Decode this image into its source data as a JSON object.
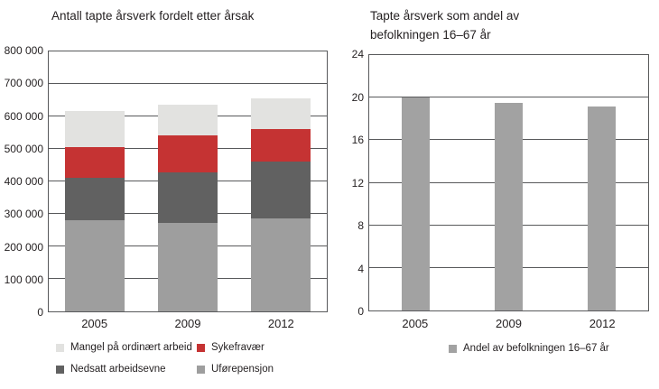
{
  "page": {
    "background": "#ffffff",
    "text_color": "#231f20",
    "grid_color": "#58595b"
  },
  "left_chart": {
    "title": "Antall tapte årsverk fordelt etter årsak",
    "y_ticks": [
      "800 000",
      "700 000",
      "600 000",
      "500 000",
      "400 000",
      "300 000",
      "200 000",
      "100 000",
      "0"
    ],
    "x_ticks": [
      "2005",
      "2009",
      "2012"
    ],
    "legend": [
      {
        "label": "Mangel på ordinært arbeid",
        "color": "#e2e2e0"
      },
      {
        "label": "Sykefravær",
        "color": "#c53333"
      },
      {
        "label": "Nedsatt arbeidsevne",
        "color": "#616161"
      },
      {
        "label": "Uførepensjon",
        "color": "#9e9e9e"
      }
    ]
  },
  "right_chart": {
    "title_line1": "Tapte årsverk som andel av",
    "title_line2": "befolkningen 16–67 år",
    "y_ticks": [
      "24",
      "20",
      "16",
      "12",
      "8",
      "4",
      "0"
    ],
    "x_ticks": [
      "2005",
      "2009",
      "2012"
    ],
    "legend": [
      {
        "label": "Andel av befolkningen 16–67 år",
        "color": "#a2a2a2"
      }
    ]
  },
  "chart_data": [
    {
      "id": "antall-tapte-arsverk",
      "type": "bar",
      "stacked": true,
      "title": "Antall tapte årsverk fordelt etter årsak",
      "categories": [
        "2005",
        "2009",
        "2012"
      ],
      "series": [
        {
          "name": "Uførepensjon",
          "color": "#9e9e9e",
          "values": [
            280000,
            272000,
            286000
          ]
        },
        {
          "name": "Nedsatt arbeidsevne",
          "color": "#616161",
          "values": [
            130000,
            155000,
            174000
          ]
        },
        {
          "name": "Sykefravær",
          "color": "#c53333",
          "values": [
            95000,
            116000,
            100000
          ]
        },
        {
          "name": "Mangel på ordinært arbeid",
          "color": "#e2e2e0",
          "values": [
            112000,
            94000,
            95000
          ]
        }
      ],
      "totals": [
        617000,
        637000,
        655000
      ],
      "ylim": [
        0,
        800000
      ],
      "ytick_step": 100000,
      "grid": true,
      "legend_position": "bottom"
    },
    {
      "id": "andel-av-befolkningen",
      "type": "bar",
      "stacked": false,
      "title": "Tapte årsverk som andel av befolkningen 16–67 år",
      "categories": [
        "2005",
        "2009",
        "2012"
      ],
      "series": [
        {
          "name": "Andel av befolkningen 16–67 år",
          "color": "#a2a2a2",
          "values": [
            20.0,
            19.5,
            19.2
          ]
        }
      ],
      "ylim": [
        0,
        24
      ],
      "ytick_step": 4,
      "grid": true,
      "legend_position": "bottom"
    }
  ]
}
